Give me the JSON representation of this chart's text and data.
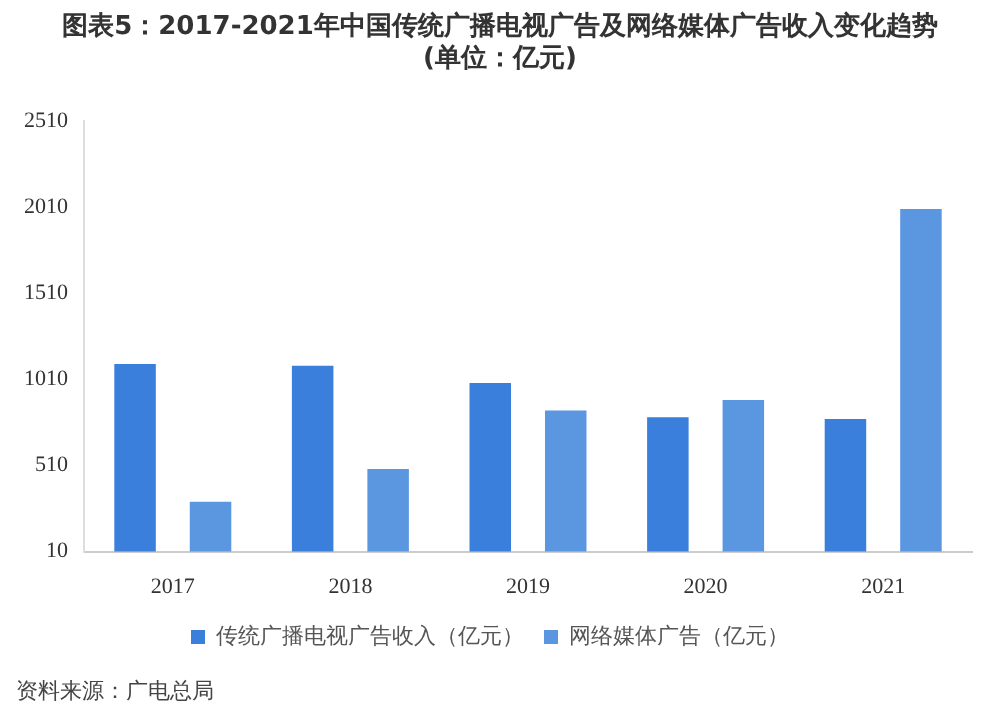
{
  "chart_data": {
    "type": "bar",
    "title": "图表5：2017-2021年中国传统广播电视广告及网络媒体广告收入变化趋势(单位：亿元)",
    "categories": [
      "2017",
      "2018",
      "2019",
      "2020",
      "2021"
    ],
    "series": [
      {
        "name": "传统广播电视广告收入（亿元）",
        "color": "#3a7fdc",
        "values": [
          1100,
          1090,
          990,
          790,
          780
        ]
      },
      {
        "name": "网络媒体广告（亿元）",
        "color": "#5b96e0",
        "values": [
          300,
          490,
          830,
          890,
          2000
        ]
      }
    ],
    "ylim": [
      10,
      2510
    ],
    "yticks": [
      10,
      510,
      1010,
      1510,
      2010,
      2510
    ],
    "grid": false,
    "legend": "bottom",
    "annotations": [
      "资料来源：广电总局"
    ]
  }
}
